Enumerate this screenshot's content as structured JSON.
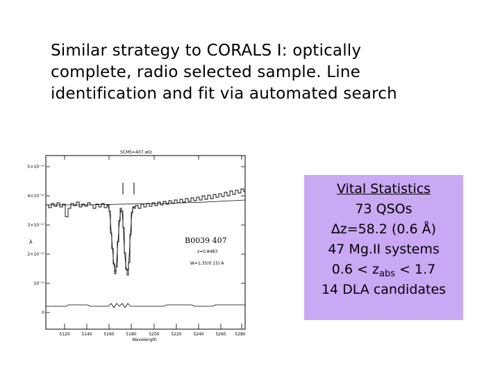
{
  "slide": {
    "text_lines": [
      "Similar strategy to CORALS I: optically",
      "complete, radio selected sample.  Line",
      "identification and fit via automated search"
    ]
  },
  "plot": {
    "top_label": "SCMS=407.wtz",
    "y_tick_labels": [
      "5×10⁻¹⁷",
      "4×10⁻¹⁷",
      "3×10⁻¹⁷",
      "2×10⁻¹⁷",
      "10⁻¹⁷",
      "0"
    ],
    "y_axis_label": "λ",
    "x_tick_labels": [
      "5120",
      "5140",
      "5160",
      "5180",
      "5200",
      "5220",
      "5240",
      "5260",
      "5280"
    ],
    "x_axis_label": "Wavelength",
    "object_name": "B0039 407",
    "redshift": "z=0.8483",
    "equivalent_width": "W=1.35(0.15) A"
  },
  "stats": {
    "title": "Vital Statistics",
    "qso_count": "73 QSOs",
    "delta_z": "∆z=58.2 (0.6 Å)",
    "mgii_systems": "47 Mg.II systems",
    "z_range_prefix": "0.6 < z",
    "z_range_subscript": "abs",
    "z_range_suffix": " < 1.7",
    "dla": "14 DLA candidates"
  },
  "colors": {
    "stats_box_bg": "#c9a8f4",
    "text": "#000000"
  }
}
